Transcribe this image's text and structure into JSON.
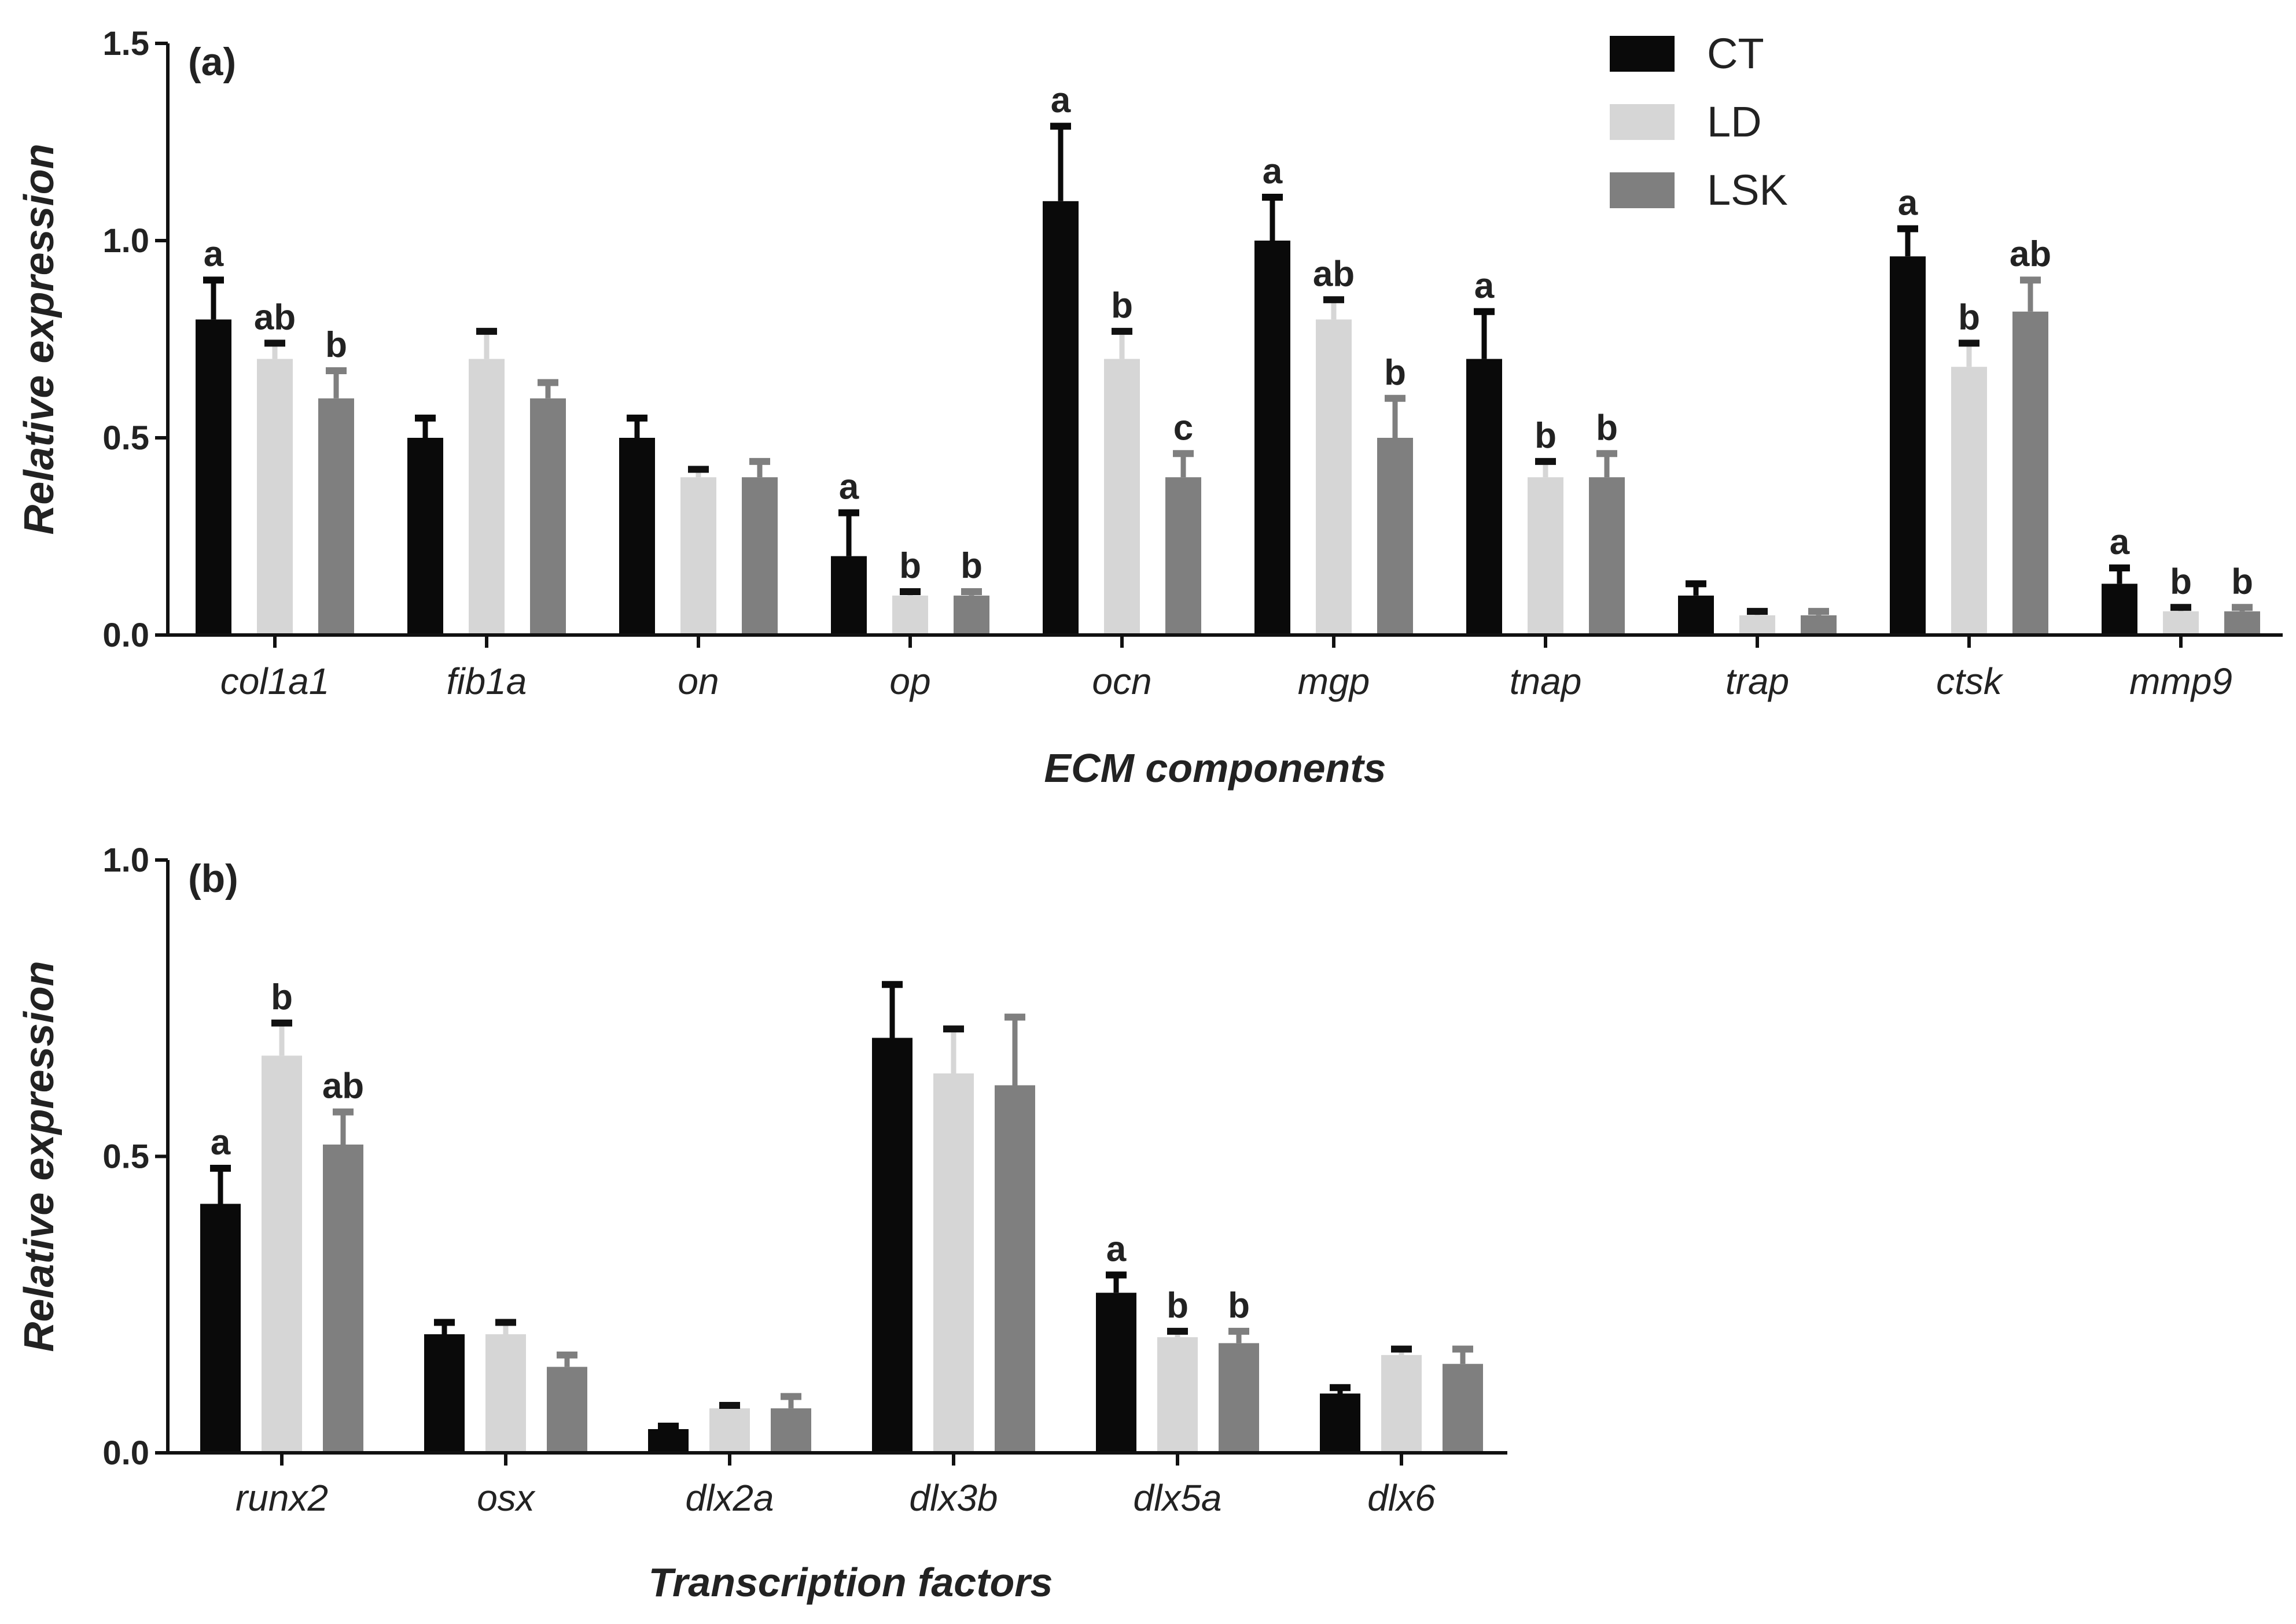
{
  "colors": {
    "CT": "#0a0a0a",
    "LD": "#d6d6d6",
    "LSK": "#7f7f7f",
    "axis": "#111111"
  },
  "legend": [
    {
      "key": "CT",
      "label": "CT"
    },
    {
      "key": "LD",
      "label": "LD"
    },
    {
      "key": "LSK",
      "label": "LSK"
    }
  ],
  "chart_data": [
    {
      "type": "bar",
      "panel_label": "(a)",
      "xlabel": "ECM components",
      "ylabel": "Relative expression",
      "ylim": [
        0,
        1.5
      ],
      "yticks": [
        0.0,
        0.5,
        1.0,
        1.5
      ],
      "ytick_labels": [
        "0.0",
        "0.5",
        "1.0",
        "1.5"
      ],
      "categories": [
        "col1a1",
        "fib1a",
        "on",
        "op",
        "ocn",
        "mgp",
        "tnap",
        "trap",
        "ctsk",
        "mmp9"
      ],
      "series": [
        {
          "name": "CT",
          "values": [
            0.8,
            0.5,
            0.5,
            0.2,
            1.1,
            1.0,
            0.7,
            0.1,
            0.96,
            0.13
          ],
          "errors": [
            0.1,
            0.05,
            0.05,
            0.11,
            0.19,
            0.11,
            0.12,
            0.03,
            0.07,
            0.04
          ],
          "letters": [
            "a",
            "",
            "",
            "a",
            "a",
            "a",
            "a",
            "",
            "a",
            "a"
          ]
        },
        {
          "name": "LD",
          "values": [
            0.7,
            0.7,
            0.4,
            0.1,
            0.7,
            0.8,
            0.4,
            0.05,
            0.68,
            0.06
          ],
          "errors": [
            0.04,
            0.07,
            0.02,
            0.01,
            0.07,
            0.05,
            0.04,
            0.01,
            0.06,
            0.01
          ],
          "letters": [
            "ab",
            "",
            "",
            "b",
            "b",
            "ab",
            "b",
            "",
            "b",
            "b"
          ]
        },
        {
          "name": "LSK",
          "values": [
            0.6,
            0.6,
            0.4,
            0.1,
            0.4,
            0.5,
            0.4,
            0.05,
            0.82,
            0.06
          ],
          "errors": [
            0.07,
            0.04,
            0.04,
            0.01,
            0.06,
            0.1,
            0.06,
            0.01,
            0.08,
            0.01
          ],
          "letters": [
            "b",
            "",
            "",
            "b",
            "c",
            "b",
            "b",
            "",
            "ab",
            "b"
          ]
        }
      ]
    },
    {
      "type": "bar",
      "panel_label": "(b)",
      "xlabel": "Transcription factors",
      "ylabel": "Relative expression",
      "ylim": [
        0,
        1.0
      ],
      "yticks": [
        0.0,
        0.5,
        1.0
      ],
      "ytick_labels": [
        "0.0",
        "0.5",
        "1.0"
      ],
      "categories": [
        "runx2",
        "osx",
        "dlx2a",
        "dlx3b",
        "dlx5a",
        "dlx6"
      ],
      "series": [
        {
          "name": "CT",
          "values": [
            0.42,
            0.2,
            0.04,
            0.7,
            0.27,
            0.1
          ],
          "errors": [
            0.06,
            0.02,
            0.005,
            0.09,
            0.03,
            0.01
          ],
          "letters": [
            "a",
            "",
            "",
            "",
            "a",
            ""
          ]
        },
        {
          "name": "LD",
          "values": [
            0.67,
            0.2,
            0.075,
            0.64,
            0.195,
            0.165
          ],
          "errors": [
            0.055,
            0.02,
            0.005,
            0.075,
            0.01,
            0.01
          ],
          "letters": [
            "b",
            "",
            "",
            "",
            "b",
            ""
          ]
        },
        {
          "name": "LSK",
          "values": [
            0.52,
            0.145,
            0.075,
            0.62,
            0.185,
            0.15
          ],
          "errors": [
            0.055,
            0.02,
            0.02,
            0.115,
            0.02,
            0.025
          ],
          "letters": [
            "ab",
            "",
            "",
            "",
            "b",
            ""
          ]
        }
      ]
    }
  ]
}
